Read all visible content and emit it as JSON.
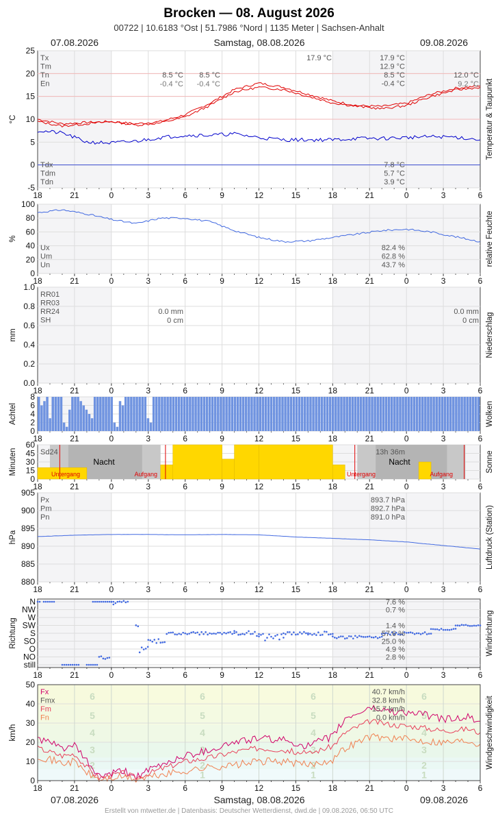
{
  "header": {
    "title": "Brocken  —  08. August 2026",
    "subtitle": "00722  |  10.6183 °Ost  |  51.7986 °Nord  |  1135 Meter  |  Sachsen-Anhalt",
    "date_left": "07.08.2026",
    "date_center": "Samstag, 08.08.2026",
    "date_right": "09.08.2026"
  },
  "footer": {
    "date_left": "07.08.2026",
    "date_center": "Samstag, 08.08.2026",
    "date_right": "09.08.2026",
    "credits": "Erstellt von mtwetter.de | Datenbasis: Deutscher Wetterdienst, dwd.de | 09.08.2026, 06:50 UTC"
  },
  "colors": {
    "temperature": "#e00000",
    "dewpoint": "#0000cc",
    "humidity": "#4169e1",
    "clouds": "#6f93e0",
    "sun": "#ffd700",
    "night": "#b9b9b9",
    "pressure": "#4169e1",
    "gust": "#d0006a",
    "wind_mean": "#e8405a",
    "wind_min": "#f08050",
    "grid": "#dddddd"
  },
  "chart_data": [
    {
      "type": "line",
      "title": "Temperatur & Taupunkt",
      "ylabel": "°C",
      "ylim": [
        -5,
        25
      ],
      "yticks": [
        -5,
        0,
        5,
        10,
        15,
        20,
        25
      ],
      "xticks": [
        "18",
        "21",
        "0",
        "3",
        "6",
        "9",
        "12",
        "15",
        "18",
        "21",
        "0",
        "3",
        "6"
      ],
      "series": [
        {
          "name": "Tx",
          "values": [
            [
              18,
              10
            ],
            [
              20,
              9
            ],
            [
              22,
              9.3
            ],
            [
              24,
              9.5
            ],
            [
              26,
              9
            ],
            [
              28,
              9.5
            ],
            [
              30,
              11
            ],
            [
              32,
              13.5
            ],
            [
              34,
              16.5
            ],
            [
              36,
              17.9
            ],
            [
              38,
              17
            ],
            [
              40,
              15.5
            ],
            [
              42,
              14
            ],
            [
              44,
              13
            ],
            [
              46,
              12.8
            ],
            [
              48,
              13.5
            ],
            [
              50,
              15.5
            ],
            [
              52,
              16.8
            ],
            [
              54,
              17.3
            ]
          ]
        },
        {
          "name": "Tm",
          "values": [
            [
              18,
              9.5
            ],
            [
              20,
              8.5
            ],
            [
              22,
              9
            ],
            [
              24,
              9.5
            ],
            [
              26,
              8.7
            ],
            [
              28,
              9.2
            ],
            [
              30,
              10.5
            ],
            [
              32,
              13
            ],
            [
              34,
              16
            ],
            [
              36,
              17
            ],
            [
              38,
              16.5
            ],
            [
              40,
              15
            ],
            [
              42,
              13.6
            ],
            [
              44,
              12.8
            ],
            [
              46,
              12.3
            ],
            [
              48,
              13
            ],
            [
              50,
              15
            ],
            [
              52,
              16.4
            ],
            [
              54,
              17
            ]
          ]
        },
        {
          "name": "Tdm",
          "values": [
            [
              18,
              7.5
            ],
            [
              20,
              7
            ],
            [
              22,
              5
            ],
            [
              24,
              4.8
            ],
            [
              26,
              5.2
            ],
            [
              28,
              6
            ],
            [
              30,
              6.5
            ],
            [
              32,
              6.5
            ],
            [
              34,
              6.8
            ],
            [
              36,
              6
            ],
            [
              38,
              5.5
            ],
            [
              40,
              5.5
            ],
            [
              42,
              5.5
            ],
            [
              44,
              5.8
            ],
            [
              46,
              5.8
            ],
            [
              48,
              6
            ],
            [
              50,
              6.2
            ],
            [
              52,
              6.1
            ],
            [
              54,
              5.5
            ]
          ]
        }
      ],
      "annotations": [
        {
          "label": "Tx",
          "value": "17.9 °C"
        },
        {
          "label": "Tm",
          "value": "12.9 °C"
        },
        {
          "label": "Tn",
          "value": "8.5 °C"
        },
        {
          "label": "En",
          "value": "-0.4 °C"
        },
        {
          "label": "Tdx",
          "value": "7.8 °C"
        },
        {
          "label": "Tdm",
          "value": "5.7 °C"
        },
        {
          "label": "Tdn",
          "value": "3.9 °C"
        }
      ],
      "extra_labels": [
        "8.5 °C",
        "-0.4 °C",
        "8.5 °C",
        "-0.4 °C",
        "17.9 °C",
        "12.0 °C",
        "9.2 °C"
      ]
    },
    {
      "type": "line",
      "title": "relative Feuchte",
      "ylabel": "%",
      "ylim": [
        0,
        100
      ],
      "yticks": [
        0,
        20,
        40,
        60,
        80,
        100
      ],
      "series": [
        {
          "name": "Um",
          "values": [
            [
              18,
              88
            ],
            [
              20,
              92
            ],
            [
              22,
              86
            ],
            [
              24,
              78
            ],
            [
              26,
              72
            ],
            [
              28,
              80
            ],
            [
              30,
              80
            ],
            [
              32,
              75
            ],
            [
              34,
              62
            ],
            [
              36,
              52
            ],
            [
              38,
              46
            ],
            [
              40,
              47
            ],
            [
              42,
              52
            ],
            [
              44,
              57
            ],
            [
              46,
              62
            ],
            [
              48,
              64
            ],
            [
              50,
              60
            ],
            [
              52,
              53
            ],
            [
              54,
              46
            ]
          ]
        }
      ],
      "annotations": [
        {
          "label": "Ux",
          "value": "82.4 %"
        },
        {
          "label": "Um",
          "value": "62.8 %"
        },
        {
          "label": "Un",
          "value": "43.7 %"
        }
      ]
    },
    {
      "type": "bar",
      "title": "Niederschlag",
      "ylabel": "mm",
      "ylim": [
        0,
        1.0
      ],
      "yticks": [
        0.0,
        0.2,
        0.4,
        0.6,
        0.8,
        1.0
      ],
      "annotations": [
        {
          "label": "RR01",
          "value": ""
        },
        {
          "label": "RR03",
          "value": ""
        },
        {
          "label": "RR24",
          "value": "0.0 mm"
        },
        {
          "label": "SH",
          "value": "0 cm"
        }
      ],
      "extra_labels": [
        "0.0 mm",
        "0 cm"
      ]
    },
    {
      "type": "bar",
      "title": "Wolken",
      "ylabel": "Achtel",
      "ylim": [
        0,
        8
      ],
      "yticks": [
        0,
        2,
        4,
        6,
        8
      ],
      "values": [
        8,
        6,
        7,
        8,
        3,
        8,
        8,
        8,
        8,
        2,
        1,
        5,
        8,
        8,
        8,
        7,
        6,
        5,
        4,
        3,
        8,
        8,
        8,
        8,
        8,
        8,
        8,
        2,
        1,
        7,
        6,
        8,
        8,
        8,
        8,
        8,
        8,
        8,
        8,
        3,
        2,
        8,
        8,
        8,
        8,
        8,
        8,
        8,
        8,
        8,
        8,
        8,
        8,
        8,
        8,
        8,
        8,
        8,
        8,
        8,
        8,
        8,
        8,
        8,
        8,
        8,
        8,
        8,
        8,
        8,
        8,
        8,
        8,
        8,
        8,
        8,
        8,
        8,
        8,
        8,
        8,
        8,
        8,
        8,
        8,
        8,
        8,
        8,
        8,
        8,
        8,
        8,
        8,
        8,
        8,
        8,
        8,
        8,
        8,
        8,
        8,
        8,
        8,
        8,
        8,
        8,
        8,
        8,
        8,
        8,
        8,
        8,
        8,
        8,
        8,
        8,
        8,
        8,
        8,
        8,
        8,
        8,
        8,
        8,
        8,
        8,
        8,
        8,
        8,
        8,
        8,
        8,
        8,
        8,
        8,
        8,
        8,
        8,
        8,
        8,
        8,
        8,
        8,
        8,
        8,
        8,
        8,
        8,
        8,
        8,
        8,
        8,
        8,
        8,
        8,
        8,
        8,
        8
      ]
    },
    {
      "type": "bar",
      "title": "Sonne",
      "ylabel": "Minuten",
      "ylim": [
        0,
        60
      ],
      "yticks": [
        0,
        15,
        30,
        45,
        60
      ],
      "labels": {
        "sd24": "Sd24",
        "night": "Nacht",
        "sunset": "Untergang",
        "sunrise": "Aufgang",
        "total": "13h 36m"
      },
      "values": [
        [
          18,
          20
        ],
        [
          22,
          0
        ],
        [
          28,
          25
        ],
        [
          29,
          60
        ],
        [
          33,
          35
        ],
        [
          34,
          60
        ],
        [
          36,
          60
        ],
        [
          42,
          25
        ],
        [
          43,
          0
        ],
        [
          49,
          30
        ],
        [
          50,
          60
        ]
      ]
    },
    {
      "type": "line",
      "title": "Luftdruck (Station)",
      "ylabel": "hPa",
      "ylim": [
        880,
        905
      ],
      "yticks": [
        880,
        885,
        890,
        895,
        900,
        905
      ],
      "series": [
        {
          "name": "Pm",
          "values": [
            [
              18,
              892.7
            ],
            [
              21,
              893.1
            ],
            [
              24,
              893.3
            ],
            [
              27,
              893.3
            ],
            [
              30,
              893.2
            ],
            [
              33,
              893.3
            ],
            [
              36,
              893.2
            ],
            [
              39,
              892.6
            ],
            [
              42,
              892.2
            ],
            [
              45,
              891.8
            ],
            [
              48,
              891.2
            ],
            [
              51,
              890.2
            ],
            [
              54,
              889.2
            ]
          ]
        }
      ],
      "annotations": [
        {
          "label": "Px",
          "value": "893.7 hPa"
        },
        {
          "label": "Pm",
          "value": "892.7 hPa"
        },
        {
          "label": "Pn",
          "value": "891.0 hPa"
        }
      ]
    },
    {
      "type": "scatter",
      "title": "Windrichtung",
      "ylabel": "Richtung",
      "categories": [
        "still",
        "NO",
        "O",
        "SO",
        "S",
        "SW",
        "W",
        "NW",
        "N"
      ],
      "annotations": [
        {
          "label": "N",
          "value": "7.6 %"
        },
        {
          "label": "NW",
          "value": "0.7 %"
        },
        {
          "label": "SW",
          "value": "1.4 %"
        },
        {
          "label": "S",
          "value": "57.6 %"
        },
        {
          "label": "SO",
          "value": "25.0 %"
        },
        {
          "label": "O",
          "value": "4.9 %"
        },
        {
          "label": "NO",
          "value": "2.8 %"
        }
      ]
    },
    {
      "type": "line",
      "title": "Windgeschwindigkeit",
      "ylabel": "km/h",
      "ylim": [
        0,
        50
      ],
      "yticks": [
        0,
        10,
        20,
        30,
        40,
        50
      ],
      "beaufort_labels": [
        "1",
        "2",
        "3",
        "4",
        "5",
        "6"
      ],
      "series": [
        {
          "name": "Fx",
          "values": [
            [
              18,
              22
            ],
            [
              20,
              17
            ],
            [
              21,
              18
            ],
            [
              22,
              10
            ],
            [
              23,
              2
            ],
            [
              25,
              5
            ],
            [
              26,
              2
            ],
            [
              28,
              8
            ],
            [
              30,
              13
            ],
            [
              32,
              16
            ],
            [
              34,
              20
            ],
            [
              36,
              22
            ],
            [
              38,
              21
            ],
            [
              40,
              18
            ],
            [
              42,
              23
            ],
            [
              43,
              32
            ],
            [
              45,
              38
            ],
            [
              47,
              36
            ],
            [
              49,
              35
            ],
            [
              51,
              32
            ],
            [
              53,
              33
            ],
            [
              54,
              31
            ]
          ]
        },
        {
          "name": "Fm",
          "values": [
            [
              18,
              17
            ],
            [
              20,
              13
            ],
            [
              21,
              14
            ],
            [
              22,
              7
            ],
            [
              23,
              1.5
            ],
            [
              25,
              4
            ],
            [
              26,
              1.5
            ],
            [
              28,
              6
            ],
            [
              30,
              10
            ],
            [
              32,
              12
            ],
            [
              34,
              15
            ],
            [
              36,
              17
            ],
            [
              38,
              16
            ],
            [
              40,
              14
            ],
            [
              42,
              18
            ],
            [
              43,
              25
            ],
            [
              45,
              31
            ],
            [
              47,
              29
            ],
            [
              49,
              28
            ],
            [
              51,
              26
            ],
            [
              53,
              27
            ],
            [
              54,
              25
            ]
          ]
        },
        {
          "name": "Fn",
          "values": [
            [
              18,
              13
            ],
            [
              20,
              9
            ],
            [
              21,
              10
            ],
            [
              22,
              4
            ],
            [
              23,
              0.5
            ],
            [
              25,
              2
            ],
            [
              26,
              0.5
            ],
            [
              28,
              3
            ],
            [
              30,
              5
            ],
            [
              32,
              7
            ],
            [
              34,
              8
            ],
            [
              36,
              10
            ],
            [
              38,
              10
            ],
            [
              40,
              8
            ],
            [
              42,
              11
            ],
            [
              43,
              17
            ],
            [
              45,
              23
            ],
            [
              47,
              22
            ],
            [
              49,
              21
            ],
            [
              51,
              20
            ],
            [
              53,
              21
            ],
            [
              54,
              19
            ]
          ]
        }
      ],
      "annotations": [
        {
          "label": "Fx",
          "value": "40.7 km/h"
        },
        {
          "label": "Fmx",
          "value": "32.8 km/h"
        },
        {
          "label": "Fm",
          "value": "15.7 km/h"
        },
        {
          "label": "Fn",
          "value": "0.0 km/h"
        }
      ]
    }
  ]
}
